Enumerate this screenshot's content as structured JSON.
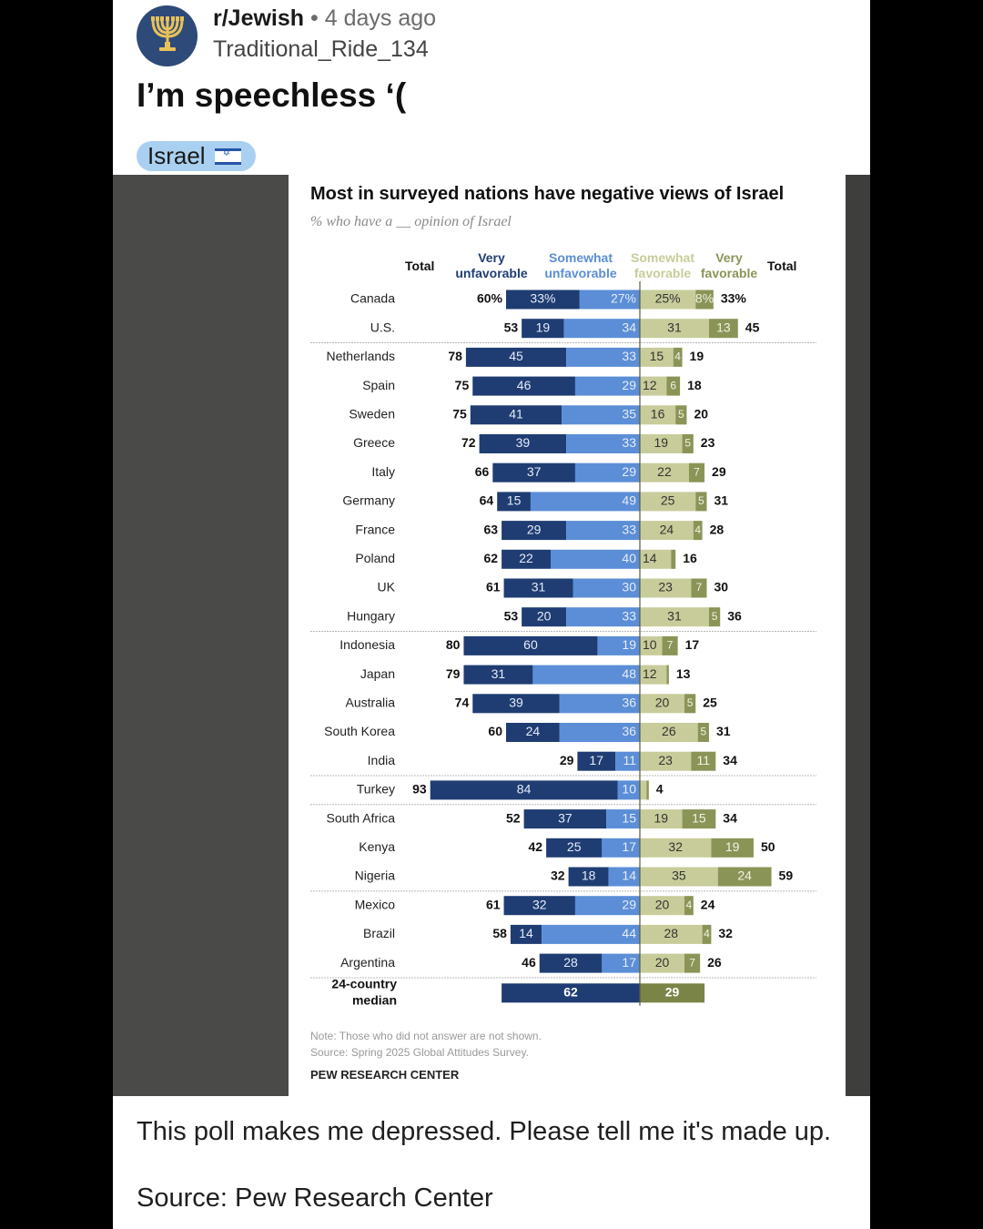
{
  "post": {
    "subreddit": "r/Jewish",
    "separator": "•",
    "time": "4 days ago",
    "author": "Traditional_Ride_134",
    "title": "I’m speechless ‘(",
    "flair": "Israel",
    "body": "This poll makes me depressed. Please tell me it's made up.",
    "source": "Source: Pew Research Center",
    "avatar_icon": "menorah-icon",
    "flair_icon": "israel-flag-icon"
  },
  "chart_data": {
    "type": "bar",
    "subtype": "diverging-stacked",
    "title": "Most in surveyed nations have negative views of Israel",
    "subtitle": "% who have a __ opinion of Israel",
    "headers": {
      "total_left": "Total",
      "very_unfav": [
        "Very",
        "unfavorable"
      ],
      "somewhat_unfav": [
        "Somewhat",
        "unfavorable"
      ],
      "somewhat_fav": [
        "Somewhat",
        "favorable"
      ],
      "very_fav": [
        "Very",
        "favorable"
      ],
      "total_right": "Total"
    },
    "colors": {
      "very_unfavorable": "#1f3d73",
      "somewhat_unfavorable": "#5b8ed6",
      "somewhat_favorable": "#c8cc9a",
      "very_favorable": "#8b9457",
      "median_unfavorable": "#1f3d73",
      "median_favorable": "#7a8447"
    },
    "series_names": [
      "Very unfavorable",
      "Somewhat unfavorable",
      "Somewhat favorable",
      "Very favorable"
    ],
    "rows": [
      {
        "country": "Canada",
        "total_unfav": "60%",
        "very_unfav": 33,
        "somewhat_unfav": 27,
        "somewhat_fav": 25,
        "very_fav": 8,
        "total_fav": "33%",
        "pct": true,
        "group": 1
      },
      {
        "country": "U.S.",
        "total_unfav": "53",
        "very_unfav": 19,
        "somewhat_unfav": 34,
        "somewhat_fav": 31,
        "very_fav": 13,
        "total_fav": "45",
        "group": 1
      },
      {
        "country": "Netherlands",
        "total_unfav": "78",
        "very_unfav": 45,
        "somewhat_unfav": 33,
        "somewhat_fav": 15,
        "very_fav": 4,
        "total_fav": "19",
        "group": 2
      },
      {
        "country": "Spain",
        "total_unfav": "75",
        "very_unfav": 46,
        "somewhat_unfav": 29,
        "somewhat_fav": 12,
        "very_fav": 6,
        "total_fav": "18",
        "group": 2
      },
      {
        "country": "Sweden",
        "total_unfav": "75",
        "very_unfav": 41,
        "somewhat_unfav": 35,
        "somewhat_fav": 16,
        "very_fav": 5,
        "total_fav": "20",
        "group": 2
      },
      {
        "country": "Greece",
        "total_unfav": "72",
        "very_unfav": 39,
        "somewhat_unfav": 33,
        "somewhat_fav": 19,
        "very_fav": 5,
        "total_fav": "23",
        "group": 2
      },
      {
        "country": "Italy",
        "total_unfav": "66",
        "very_unfav": 37,
        "somewhat_unfav": 29,
        "somewhat_fav": 22,
        "very_fav": 7,
        "total_fav": "29",
        "group": 2
      },
      {
        "country": "Germany",
        "total_unfav": "64",
        "very_unfav": 15,
        "somewhat_unfav": 49,
        "somewhat_fav": 25,
        "very_fav": 5,
        "total_fav": "31",
        "group": 2
      },
      {
        "country": "France",
        "total_unfav": "63",
        "very_unfav": 29,
        "somewhat_unfav": 33,
        "somewhat_fav": 24,
        "very_fav": 4,
        "total_fav": "28",
        "group": 2
      },
      {
        "country": "Poland",
        "total_unfav": "62",
        "very_unfav": 22,
        "somewhat_unfav": 40,
        "somewhat_fav": 14,
        "very_fav": 2,
        "total_fav": "16",
        "hide_very_fav_label": true,
        "group": 2
      },
      {
        "country": "UK",
        "total_unfav": "61",
        "very_unfav": 31,
        "somewhat_unfav": 30,
        "somewhat_fav": 23,
        "very_fav": 7,
        "total_fav": "30",
        "group": 2
      },
      {
        "country": "Hungary",
        "total_unfav": "53",
        "very_unfav": 20,
        "somewhat_unfav": 33,
        "somewhat_fav": 31,
        "very_fav": 5,
        "total_fav": "36",
        "group": 2
      },
      {
        "country": "Indonesia",
        "total_unfav": "80",
        "very_unfav": 60,
        "somewhat_unfav": 19,
        "somewhat_fav": 10,
        "very_fav": 7,
        "total_fav": "17",
        "group": 3
      },
      {
        "country": "Japan",
        "total_unfav": "79",
        "very_unfav": 31,
        "somewhat_unfav": 48,
        "somewhat_fav": 12,
        "very_fav": 1,
        "total_fav": "13",
        "hide_very_fav_label": true,
        "group": 3
      },
      {
        "country": "Australia",
        "total_unfav": "74",
        "very_unfav": 39,
        "somewhat_unfav": 36,
        "somewhat_fav": 20,
        "very_fav": 5,
        "total_fav": "25",
        "group": 3
      },
      {
        "country": "South Korea",
        "total_unfav": "60",
        "very_unfav": 24,
        "somewhat_unfav": 36,
        "somewhat_fav": 26,
        "very_fav": 5,
        "total_fav": "31",
        "group": 3
      },
      {
        "country": "India",
        "total_unfav": "29",
        "very_unfav": 17,
        "somewhat_unfav": 11,
        "somewhat_fav": 23,
        "very_fav": 11,
        "total_fav": "34",
        "group": 3
      },
      {
        "country": "Turkey",
        "total_unfav": "93",
        "very_unfav": 84,
        "somewhat_unfav": 10,
        "somewhat_fav": 3,
        "very_fav": 1,
        "total_fav": "4",
        "hide_somewhat_fav_label": true,
        "hide_very_fav_label": true,
        "group": 4
      },
      {
        "country": "South Africa",
        "total_unfav": "52",
        "very_unfav": 37,
        "somewhat_unfav": 15,
        "somewhat_fav": 19,
        "very_fav": 15,
        "total_fav": "34",
        "group": 5
      },
      {
        "country": "Kenya",
        "total_unfav": "42",
        "very_unfav": 25,
        "somewhat_unfav": 17,
        "somewhat_fav": 32,
        "very_fav": 19,
        "total_fav": "50",
        "group": 5
      },
      {
        "country": "Nigeria",
        "total_unfav": "32",
        "very_unfav": 18,
        "somewhat_unfav": 14,
        "somewhat_fav": 35,
        "very_fav": 24,
        "total_fav": "59",
        "group": 5
      },
      {
        "country": "Mexico",
        "total_unfav": "61",
        "very_unfav": 32,
        "somewhat_unfav": 29,
        "somewhat_fav": 20,
        "very_fav": 4,
        "total_fav": "24",
        "group": 6
      },
      {
        "country": "Brazil",
        "total_unfav": "58",
        "very_unfav": 14,
        "somewhat_unfav": 44,
        "somewhat_fav": 28,
        "very_fav": 4,
        "total_fav": "32",
        "group": 6
      },
      {
        "country": "Argentina",
        "total_unfav": "46",
        "very_unfav": 28,
        "somewhat_unfav": 17,
        "somewhat_fav": 20,
        "very_fav": 7,
        "total_fav": "26",
        "group": 6
      }
    ],
    "median": {
      "label": [
        "24-country",
        "median"
      ],
      "unfavorable": 62,
      "favorable": 29
    },
    "note": "Note: Those who did not answer are not shown.",
    "source": "Source: Spring 2025 Global Attitudes Survey.",
    "publisher": "PEW RESEARCH CENTER"
  }
}
